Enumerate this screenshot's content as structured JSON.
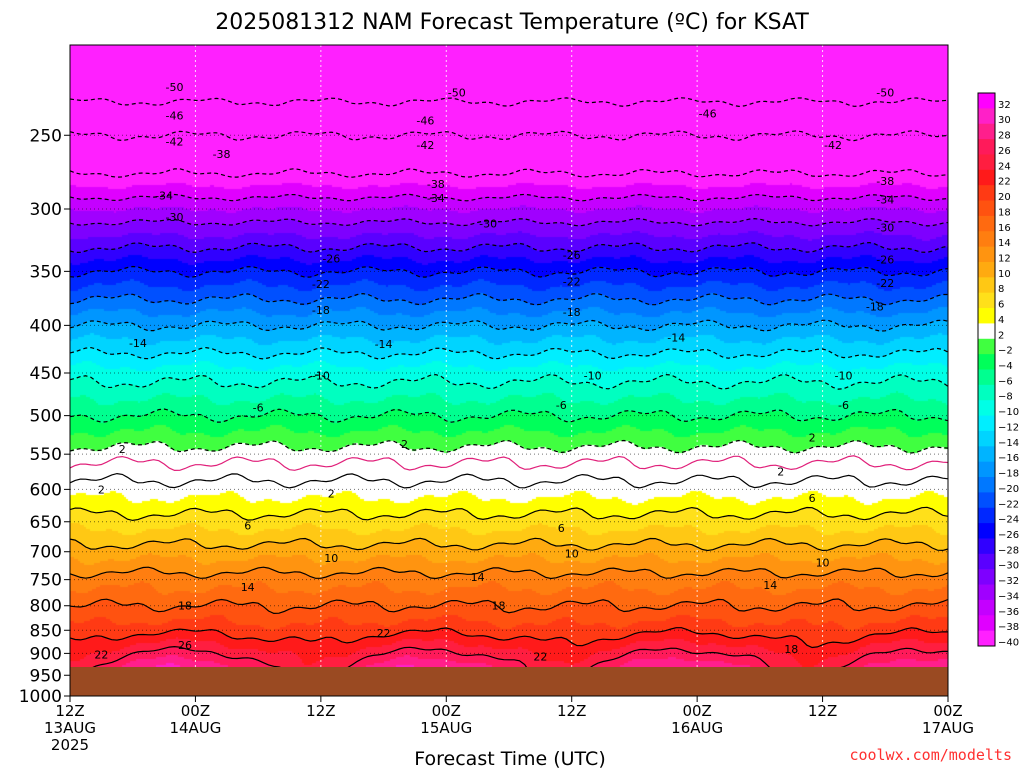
{
  "chart_data": {
    "type": "heatmap",
    "title": "2025081312 NAM Forecast Temperature (ºC) for KSAT",
    "xlabel": "Forecast Time (UTC)",
    "ylabel": "",
    "credit": "coolwx.com/modelts",
    "y_scale": "log-pressure",
    "ylim": [
      1000,
      200
    ],
    "xlim": [
      "2025-08-13 12Z",
      "2025-08-17 00Z"
    ],
    "y_ticks": [
      250,
      300,
      350,
      400,
      450,
      500,
      550,
      600,
      650,
      700,
      750,
      800,
      850,
      900,
      950,
      1000
    ],
    "x_ticks": [
      {
        "hours": 0,
        "line1": "12Z",
        "line2": "13AUG",
        "line3": "2025"
      },
      {
        "hours": 12,
        "line1": "00Z",
        "line2": "14AUG",
        "line3": ""
      },
      {
        "hours": 24,
        "line1": "12Z",
        "line2": "",
        "line3": ""
      },
      {
        "hours": 36,
        "line1": "00Z",
        "line2": "15AUG",
        "line3": ""
      },
      {
        "hours": 48,
        "line1": "12Z",
        "line2": "",
        "line3": ""
      },
      {
        "hours": 60,
        "line1": "00Z",
        "line2": "16AUG",
        "line3": ""
      },
      {
        "hours": 72,
        "line1": "12Z",
        "line2": "",
        "line3": ""
      },
      {
        "hours": 84,
        "line1": "00Z",
        "line2": "17AUG",
        "line3": ""
      }
    ],
    "grid": true,
    "surface_color": "#9a4a22",
    "freezing_line_color": "#e0207a",
    "colorbar": {
      "labels": [
        "32",
        "30",
        "28",
        "26",
        "24",
        "22",
        "20",
        "18",
        "16",
        "14",
        "12",
        "10",
        "8",
        "6",
        "4",
        "2",
        "−2",
        "−4",
        "−6",
        "−8",
        "−10",
        "−12",
        "−14",
        "−16",
        "−18",
        "−20",
        "−22",
        "−24",
        "−26",
        "−28",
        "−30",
        "−32",
        "−34",
        "−36",
        "−38",
        "−40"
      ],
      "colors": [
        "#ff00ff",
        "#ff20c8",
        "#ff1f8c",
        "#ff1a5a",
        "#ff1e40",
        "#ff1a1a",
        "#ff3a14",
        "#ff5210",
        "#ff6a10",
        "#ff7e10",
        "#ff9410",
        "#ffaa10",
        "#ffc814",
        "#ffe01a",
        "#ffff00",
        "#ffffff",
        "#40ff40",
        "#00ff5a",
        "#00ff90",
        "#00ffc0",
        "#00ffe6",
        "#00eeff",
        "#00d4ff",
        "#00b4ff",
        "#0096ff",
        "#0078ff",
        "#0050ff",
        "#0028ff",
        "#0000ff",
        "#3000ff",
        "#5a00ff",
        "#7e00ff",
        "#a000ff",
        "#c400ff",
        "#e000ff",
        "#ff20ff"
      ]
    },
    "profile": [
      {
        "p": 200,
        "t": -58
      },
      {
        "p": 230,
        "t": -50
      },
      {
        "p": 250,
        "t": -46
      },
      {
        "p": 275,
        "t": -42
      },
      {
        "p": 300,
        "t": -36
      },
      {
        "p": 350,
        "t": -26
      },
      {
        "p": 400,
        "t": -18
      },
      {
        "p": 450,
        "t": -11
      },
      {
        "p": 500,
        "t": -6
      },
      {
        "p": 550,
        "t": -1
      },
      {
        "p": 600,
        "t": 3
      },
      {
        "p": 650,
        "t": 7
      },
      {
        "p": 700,
        "t": 11
      },
      {
        "p": 750,
        "t": 15
      },
      {
        "p": 800,
        "t": 18
      },
      {
        "p": 850,
        "t": 21
      },
      {
        "p": 900,
        "t": 25
      },
      {
        "p": 950,
        "t": 29
      },
      {
        "p": 1000,
        "t": 33
      }
    ],
    "diurnal": {
      "period_hours": 24,
      "peak_hours": [
        11,
        34,
        58
      ],
      "amplitude_surface": 6
    },
    "contours": [
      {
        "t": -50,
        "style": "dashed"
      },
      {
        "t": -46,
        "style": "dashed"
      },
      {
        "t": -42,
        "style": "dashed"
      },
      {
        "t": -38,
        "style": "dashed"
      },
      {
        "t": -34,
        "style": "dashed"
      },
      {
        "t": -30,
        "style": "dashed"
      },
      {
        "t": -26,
        "style": "dashed"
      },
      {
        "t": -22,
        "style": "dashed"
      },
      {
        "t": -18,
        "style": "dashed"
      },
      {
        "t": -14,
        "style": "dashed"
      },
      {
        "t": -10,
        "style": "dashed"
      },
      {
        "t": -6,
        "style": "dashed"
      },
      {
        "t": -2,
        "style": "dashed"
      },
      {
        "t": 0,
        "style": "freezing"
      },
      {
        "t": 2,
        "style": "solid"
      },
      {
        "t": 6,
        "style": "solid"
      },
      {
        "t": 10,
        "style": "solid"
      },
      {
        "t": 14,
        "style": "solid"
      },
      {
        "t": 18,
        "style": "solid"
      },
      {
        "t": 22,
        "style": "solid"
      },
      {
        "t": 26,
        "style": "solid"
      }
    ],
    "contour_labels": [
      {
        "text": "-50",
        "hours": 10,
        "p": 222
      },
      {
        "text": "-50",
        "hours": 37,
        "p": 225
      },
      {
        "text": "-50",
        "hours": 78,
        "p": 225
      },
      {
        "text": "-46",
        "hours": 10,
        "p": 238
      },
      {
        "text": "-46",
        "hours": 34,
        "p": 241
      },
      {
        "text": "-46",
        "hours": 61,
        "p": 237
      },
      {
        "text": "-42",
        "hours": 10,
        "p": 254
      },
      {
        "text": "-42",
        "hours": 34,
        "p": 256
      },
      {
        "text": "-42",
        "hours": 73,
        "p": 256
      },
      {
        "text": "-38",
        "hours": 14.5,
        "p": 262
      },
      {
        "text": "-38",
        "hours": 35,
        "p": 282
      },
      {
        "text": "-38",
        "hours": 78,
        "p": 280
      },
      {
        "text": "-34",
        "hours": 9,
        "p": 290
      },
      {
        "text": "-34",
        "hours": 35,
        "p": 292
      },
      {
        "text": "-34",
        "hours": 78,
        "p": 293
      },
      {
        "text": "-30",
        "hours": 10,
        "p": 306
      },
      {
        "text": "-30",
        "hours": 40,
        "p": 311
      },
      {
        "text": "-30",
        "hours": 78,
        "p": 314
      },
      {
        "text": "-26",
        "hours": 25,
        "p": 339
      },
      {
        "text": "-26",
        "hours": 48,
        "p": 336
      },
      {
        "text": "-26",
        "hours": 78,
        "p": 340
      },
      {
        "text": "-22",
        "hours": 24,
        "p": 361
      },
      {
        "text": "-22",
        "hours": 48,
        "p": 359
      },
      {
        "text": "-22",
        "hours": 78,
        "p": 360
      },
      {
        "text": "-18",
        "hours": 24,
        "p": 385
      },
      {
        "text": "-18",
        "hours": 48,
        "p": 387
      },
      {
        "text": "-18",
        "hours": 77,
        "p": 382
      },
      {
        "text": "-14",
        "hours": 6.5,
        "p": 418
      },
      {
        "text": "-14",
        "hours": 30,
        "p": 419
      },
      {
        "text": "-14",
        "hours": 58,
        "p": 412
      },
      {
        "text": "-10",
        "hours": 24,
        "p": 453
      },
      {
        "text": "-10",
        "hours": 50,
        "p": 453
      },
      {
        "text": "-10",
        "hours": 74,
        "p": 453
      },
      {
        "text": "-6",
        "hours": 18,
        "p": 490
      },
      {
        "text": "-6",
        "hours": 47,
        "p": 487
      },
      {
        "text": "-6",
        "hours": 74,
        "p": 487
      },
      {
        "text": "2",
        "hours": 5,
        "p": 543
      },
      {
        "text": "2",
        "hours": 32,
        "p": 536
      },
      {
        "text": "2",
        "hours": 71,
        "p": 528
      },
      {
        "text": "2",
        "hours": 3,
        "p": 600
      },
      {
        "text": "2",
        "hours": 25,
        "p": 606
      },
      {
        "text": "2",
        "hours": 68,
        "p": 574
      },
      {
        "text": "6",
        "hours": 17,
        "p": 656
      },
      {
        "text": "6",
        "hours": 47,
        "p": 660
      },
      {
        "text": "6",
        "hours": 71,
        "p": 613
      },
      {
        "text": "10",
        "hours": 25,
        "p": 711
      },
      {
        "text": "10",
        "hours": 48,
        "p": 703
      },
      {
        "text": "10",
        "hours": 72,
        "p": 719
      },
      {
        "text": "14",
        "hours": 17,
        "p": 764
      },
      {
        "text": "14",
        "hours": 39,
        "p": 745
      },
      {
        "text": "14",
        "hours": 67,
        "p": 760
      },
      {
        "text": "18",
        "hours": 11,
        "p": 800
      },
      {
        "text": "18",
        "hours": 41,
        "p": 800
      },
      {
        "text": "18",
        "hours": 69,
        "p": 890
      },
      {
        "text": "22",
        "hours": 3,
        "p": 902
      },
      {
        "text": "22",
        "hours": 30,
        "p": 856
      },
      {
        "text": "22",
        "hours": 45,
        "p": 907
      },
      {
        "text": "22",
        "hours": 72,
        "p": 968
      },
      {
        "text": "26",
        "hours": 11,
        "p": 882
      }
    ]
  }
}
